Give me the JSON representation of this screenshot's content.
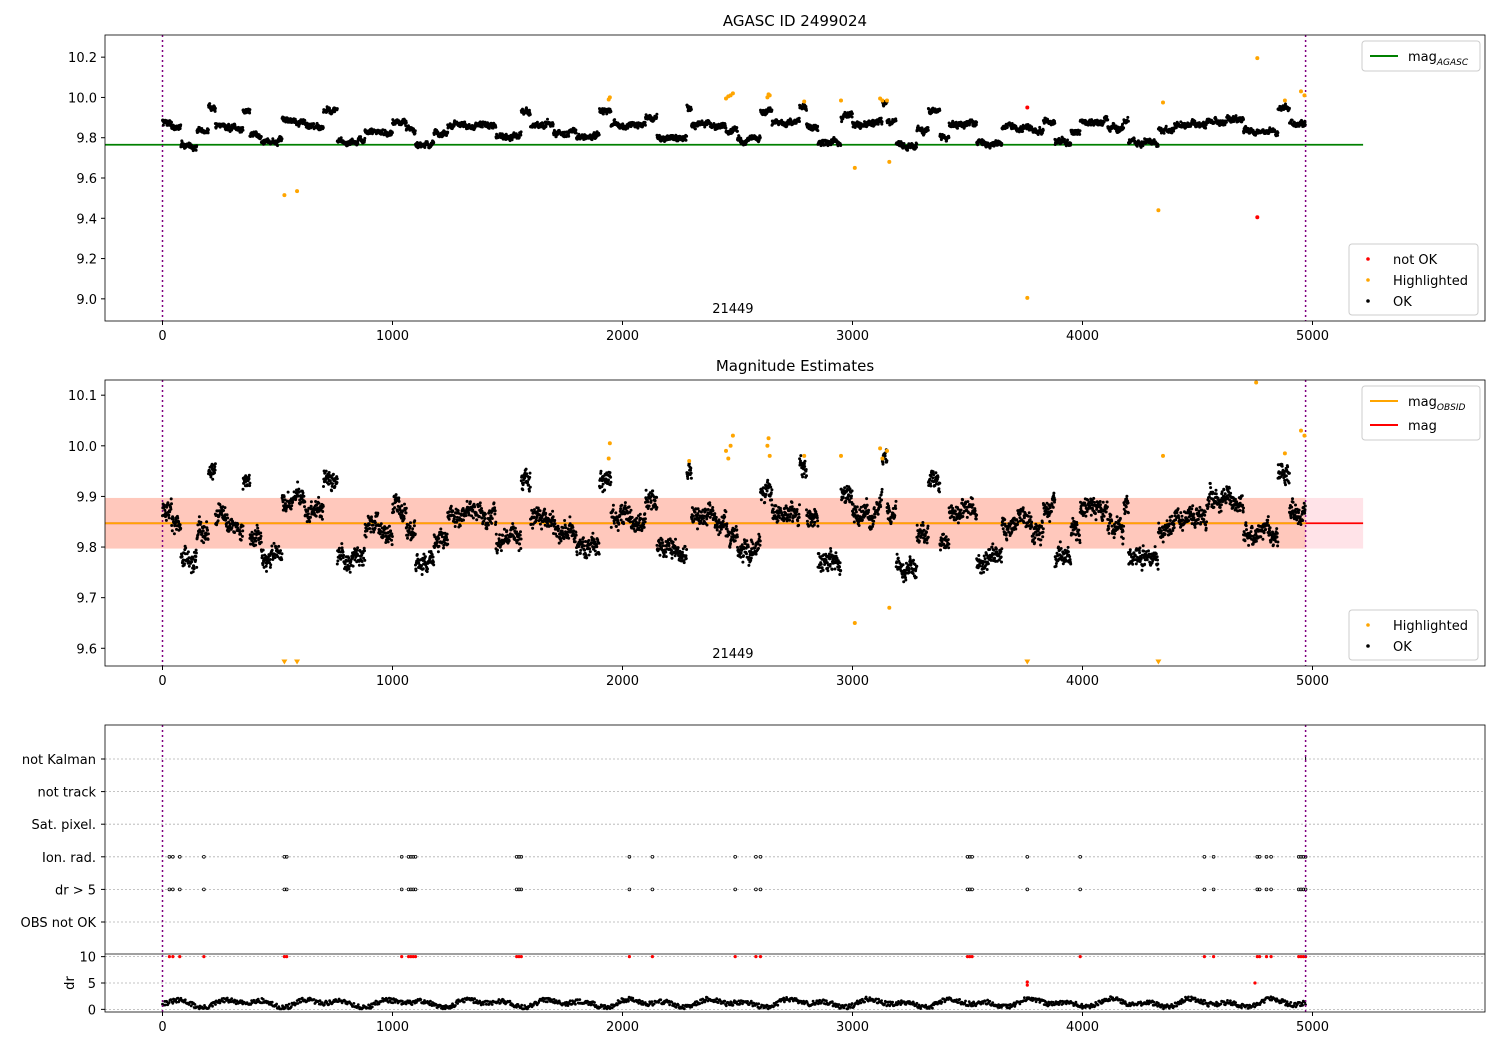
{
  "chart_data": [
    {
      "type": "scatter",
      "title": "AGASC ID 2499024",
      "xlim": [
        -250,
        5750
      ],
      "ylim": [
        8.89,
        10.31
      ],
      "x_ticks": [
        0,
        1000,
        2000,
        3000,
        4000,
        5000
      ],
      "y_ticks": [
        9.0,
        9.2,
        9.4,
        9.6,
        9.8,
        10.0,
        10.2
      ],
      "x_tick_labels": [
        "0",
        "1000",
        "2000",
        "3000",
        "4000",
        "5000"
      ],
      "y_tick_labels": [
        "9.0",
        "9.2",
        "9.4",
        "9.6",
        "9.8",
        "10.0",
        "10.2"
      ],
      "vlines": [
        0,
        4970
      ],
      "obsid_label": "21449",
      "obsid_label_x": 2480,
      "lines": [
        {
          "name": "mag_AGASC",
          "value": 9.765,
          "x_range": [
            -250,
            5220
          ],
          "color": "#008000"
        }
      ],
      "legend_lines": [
        {
          "base": "mag",
          "sub": "AGASC",
          "color": "#008000"
        }
      ],
      "legend_points": [
        {
          "label": "not OK",
          "color": "#ff0000"
        },
        {
          "label": "Highlighted",
          "color": "#ffa500"
        },
        {
          "label": "OK",
          "color": "#000000"
        }
      ],
      "ok_segments": [
        [
          0,
          40,
          9.88
        ],
        [
          40,
          80,
          9.85
        ],
        [
          80,
          150,
          9.76
        ],
        [
          150,
          200,
          9.83
        ],
        [
          200,
          230,
          9.95
        ],
        [
          230,
          290,
          9.86
        ],
        [
          290,
          350,
          9.84
        ],
        [
          350,
          380,
          9.93
        ],
        [
          380,
          430,
          9.82
        ],
        [
          430,
          520,
          9.78
        ],
        [
          520,
          620,
          9.89
        ],
        [
          620,
          700,
          9.86
        ],
        [
          700,
          760,
          9.94
        ],
        [
          760,
          880,
          9.78
        ],
        [
          880,
          1000,
          9.83
        ],
        [
          1000,
          1060,
          9.88
        ],
        [
          1060,
          1100,
          9.84
        ],
        [
          1100,
          1180,
          9.77
        ],
        [
          1180,
          1240,
          9.82
        ],
        [
          1240,
          1450,
          9.86
        ],
        [
          1450,
          1560,
          9.81
        ],
        [
          1560,
          1600,
          9.93
        ],
        [
          1600,
          1700,
          9.86
        ],
        [
          1700,
          1800,
          9.83
        ],
        [
          1800,
          1900,
          9.8
        ],
        [
          1900,
          1950,
          9.93
        ],
        [
          1950,
          2100,
          9.86
        ],
        [
          2100,
          2150,
          9.9
        ],
        [
          2150,
          2280,
          9.8
        ],
        [
          2280,
          2300,
          9.95
        ],
        [
          2300,
          2450,
          9.86
        ],
        [
          2450,
          2500,
          9.83
        ],
        [
          2500,
          2560,
          9.79
        ],
        [
          2560,
          2600,
          9.8
        ],
        [
          2600,
          2650,
          9.93
        ],
        [
          2650,
          2770,
          9.87
        ],
        [
          2770,
          2800,
          9.96
        ],
        [
          2800,
          2850,
          9.86
        ],
        [
          2850,
          2950,
          9.77
        ],
        [
          2950,
          3000,
          9.9
        ],
        [
          3000,
          3130,
          9.87
        ],
        [
          3130,
          3150,
          9.97
        ],
        [
          3150,
          3190,
          9.87
        ],
        [
          3190,
          3280,
          9.76
        ],
        [
          3280,
          3330,
          9.84
        ],
        [
          3330,
          3380,
          9.94
        ],
        [
          3380,
          3420,
          9.81
        ],
        [
          3420,
          3540,
          9.87
        ],
        [
          3540,
          3650,
          9.77
        ],
        [
          3650,
          3780,
          9.85
        ],
        [
          3780,
          3830,
          9.83
        ],
        [
          3830,
          3880,
          9.88
        ],
        [
          3880,
          3950,
          9.78
        ],
        [
          3950,
          3990,
          9.83
        ],
        [
          3990,
          4110,
          9.88
        ],
        [
          4110,
          4180,
          9.84
        ],
        [
          4180,
          4200,
          9.88
        ],
        [
          4200,
          4330,
          9.78
        ],
        [
          4330,
          4400,
          9.84
        ],
        [
          4400,
          4540,
          9.86
        ],
        [
          4540,
          4700,
          9.89
        ],
        [
          4700,
          4850,
          9.83
        ],
        [
          4850,
          4900,
          9.95
        ],
        [
          4900,
          4970,
          9.87
        ]
      ],
      "highlighted": [
        [
          530,
          9.515
        ],
        [
          585,
          9.535
        ],
        [
          1940,
          9.99
        ],
        [
          1945,
          10.0
        ],
        [
          2450,
          9.995
        ],
        [
          2460,
          10.005
        ],
        [
          2470,
          10.01
        ],
        [
          2480,
          10.02
        ],
        [
          2630,
          10.0
        ],
        [
          2635,
          10.015
        ],
        [
          2640,
          10.01
        ],
        [
          2790,
          9.98
        ],
        [
          2950,
          9.985
        ],
        [
          3010,
          9.65
        ],
        [
          3120,
          9.995
        ],
        [
          3130,
          9.985
        ],
        [
          3150,
          9.985
        ],
        [
          3160,
          9.68
        ],
        [
          3760,
          9.005
        ],
        [
          4330,
          9.44
        ],
        [
          4350,
          9.975
        ],
        [
          4760,
          10.195
        ],
        [
          4880,
          9.985
        ],
        [
          4950,
          10.03
        ],
        [
          4965,
          10.01
        ]
      ],
      "not_ok": [
        [
          3760,
          9.95
        ],
        [
          4760,
          9.405
        ]
      ]
    },
    {
      "type": "scatter",
      "title": "Magnitude Estimates",
      "xlim": [
        -250,
        5750
      ],
      "ylim": [
        9.565,
        10.13
      ],
      "x_ticks": [
        0,
        1000,
        2000,
        3000,
        4000,
        5000
      ],
      "y_ticks": [
        9.6,
        9.7,
        9.8,
        9.9,
        10.0,
        10.1
      ],
      "x_tick_labels": [
        "0",
        "1000",
        "2000",
        "3000",
        "4000",
        "5000"
      ],
      "y_tick_labels": [
        "9.6",
        "9.7",
        "9.8",
        "9.9",
        "10.0",
        "10.1"
      ],
      "vlines": [
        0,
        4970
      ],
      "obsid_label": "21449",
      "obsid_label_x": 2480,
      "bands": [
        {
          "y": [
            9.797,
            9.897
          ],
          "x_range": [
            -250,
            5220
          ],
          "color": "#ffc0cb",
          "opacity": 0.45
        },
        {
          "y": [
            9.797,
            9.897
          ],
          "x_range": [
            -250,
            4970
          ],
          "color": "#ffa07a",
          "opacity": 0.4
        }
      ],
      "lines": [
        {
          "name": "mag",
          "value": 9.847,
          "x_range": [
            -250,
            5220
          ],
          "color": "#ff0000"
        },
        {
          "name": "mag_OBSID",
          "value": 9.847,
          "x_range": [
            -250,
            4970
          ],
          "color": "#ffa500"
        }
      ],
      "legend_lines": [
        {
          "base": "mag",
          "sub": "OBSID",
          "color": "#ffa500"
        },
        {
          "base": "mag",
          "sub": "",
          "color": "#ff0000"
        }
      ],
      "legend_points": [
        {
          "label": "Highlighted",
          "color": "#ffa500"
        },
        {
          "label": "OK",
          "color": "#000000"
        }
      ],
      "ok_segments": [
        [
          0,
          40,
          9.88
        ],
        [
          40,
          80,
          9.85
        ],
        [
          80,
          150,
          9.77
        ],
        [
          150,
          200,
          9.83
        ],
        [
          200,
          230,
          9.95
        ],
        [
          230,
          290,
          9.86
        ],
        [
          290,
          350,
          9.84
        ],
        [
          350,
          380,
          9.93
        ],
        [
          380,
          430,
          9.82
        ],
        [
          430,
          520,
          9.78
        ],
        [
          520,
          620,
          9.89
        ],
        [
          620,
          700,
          9.86
        ],
        [
          700,
          760,
          9.93
        ],
        [
          760,
          880,
          9.78
        ],
        [
          880,
          1000,
          9.83
        ],
        [
          1000,
          1060,
          9.88
        ],
        [
          1060,
          1100,
          9.84
        ],
        [
          1100,
          1180,
          9.77
        ],
        [
          1180,
          1240,
          9.82
        ],
        [
          1240,
          1450,
          9.86
        ],
        [
          1450,
          1560,
          9.81
        ],
        [
          1560,
          1600,
          9.93
        ],
        [
          1600,
          1700,
          9.86
        ],
        [
          1700,
          1800,
          9.83
        ],
        [
          1800,
          1900,
          9.8
        ],
        [
          1900,
          1950,
          9.93
        ],
        [
          1950,
          2100,
          9.86
        ],
        [
          2100,
          2150,
          9.9
        ],
        [
          2150,
          2280,
          9.8
        ],
        [
          2280,
          2300,
          9.95
        ],
        [
          2300,
          2450,
          9.86
        ],
        [
          2450,
          2500,
          9.83
        ],
        [
          2500,
          2560,
          9.79
        ],
        [
          2560,
          2600,
          9.8
        ],
        [
          2600,
          2650,
          9.91
        ],
        [
          2650,
          2770,
          9.87
        ],
        [
          2770,
          2800,
          9.96
        ],
        [
          2800,
          2850,
          9.86
        ],
        [
          2850,
          2950,
          9.77
        ],
        [
          2950,
          3000,
          9.9
        ],
        [
          3000,
          3130,
          9.87
        ],
        [
          3130,
          3150,
          9.97
        ],
        [
          3150,
          3190,
          9.87
        ],
        [
          3190,
          3280,
          9.76
        ],
        [
          3280,
          3330,
          9.84
        ],
        [
          3330,
          3380,
          9.94
        ],
        [
          3380,
          3420,
          9.81
        ],
        [
          3420,
          3540,
          9.87
        ],
        [
          3540,
          3650,
          9.77
        ],
        [
          3650,
          3780,
          9.85
        ],
        [
          3780,
          3830,
          9.83
        ],
        [
          3830,
          3880,
          9.88
        ],
        [
          3880,
          3950,
          9.78
        ],
        [
          3950,
          3990,
          9.83
        ],
        [
          3990,
          4110,
          9.88
        ],
        [
          4110,
          4180,
          9.84
        ],
        [
          4180,
          4200,
          9.88
        ],
        [
          4200,
          4330,
          9.78
        ],
        [
          4330,
          4400,
          9.84
        ],
        [
          4400,
          4540,
          9.86
        ],
        [
          4540,
          4700,
          9.89
        ],
        [
          4700,
          4850,
          9.83
        ],
        [
          4850,
          4900,
          9.95
        ],
        [
          4900,
          4970,
          9.87
        ]
      ],
      "highlighted": [
        [
          1940,
          9.975
        ],
        [
          1945,
          10.005
        ],
        [
          2450,
          9.99
        ],
        [
          2460,
          9.975
        ],
        [
          2470,
          10.0
        ],
        [
          2480,
          10.02
        ],
        [
          2630,
          10.0
        ],
        [
          2635,
          10.015
        ],
        [
          2640,
          9.98
        ],
        [
          2790,
          9.98
        ],
        [
          2950,
          9.98
        ],
        [
          3010,
          9.65
        ],
        [
          3120,
          9.995
        ],
        [
          3130,
          9.975
        ],
        [
          3150,
          9.99
        ],
        [
          3160,
          9.68
        ],
        [
          4350,
          9.98
        ],
        [
          4880,
          9.985
        ],
        [
          4950,
          10.03
        ],
        [
          4965,
          10.02
        ],
        [
          2290,
          9.97
        ],
        [
          4755,
          10.125
        ]
      ],
      "highlighted_down": [
        [
          530,
          9.572
        ],
        [
          585,
          9.572
        ],
        [
          3760,
          9.572
        ],
        [
          4330,
          9.572
        ]
      ]
    },
    {
      "type": "scatter",
      "title": "",
      "xlim": [
        -250,
        5750
      ],
      "x_ticks": [
        0,
        1000,
        2000,
        3000,
        4000,
        5000
      ],
      "x_tick_labels": [
        "0",
        "1000",
        "2000",
        "3000",
        "4000",
        "5000"
      ],
      "vlines": [
        0,
        4970
      ],
      "flag_rows": [
        "not Kalman",
        "not track",
        "Sat. pixel.",
        "Ion. rad.",
        "dr > 5",
        "OBS not OK"
      ],
      "flag_times": [
        30,
        45,
        75,
        180,
        530,
        540,
        1040,
        1070,
        1080,
        1090,
        1100,
        1540,
        1550,
        1560,
        2030,
        2130,
        2490,
        2580,
        2600,
        3500,
        3510,
        3520,
        3760,
        3990,
        4530,
        4570,
        4760,
        4770,
        4800,
        4820,
        4940,
        4950,
        4960,
        4970
      ],
      "dr_ylabel": "dr",
      "dr_ylim": [
        -0.5,
        10.5
      ],
      "dr_yticks": [
        0,
        5,
        10
      ],
      "dr_ytick_labels": [
        "0",
        "5",
        "10"
      ],
      "dr_hi": [
        [
          30,
          10
        ],
        [
          45,
          10
        ],
        [
          75,
          10
        ],
        [
          180,
          10
        ],
        [
          530,
          10
        ],
        [
          540,
          10
        ],
        [
          1040,
          10
        ],
        [
          1070,
          10
        ],
        [
          1080,
          10
        ],
        [
          1090,
          10
        ],
        [
          1100,
          10
        ],
        [
          1540,
          10
        ],
        [
          1550,
          10
        ],
        [
          1560,
          10
        ],
        [
          2030,
          10
        ],
        [
          2130,
          10
        ],
        [
          2490,
          10
        ],
        [
          2580,
          10
        ],
        [
          2600,
          10
        ],
        [
          3500,
          10
        ],
        [
          3510,
          10
        ],
        [
          3520,
          10
        ],
        [
          3990,
          10
        ],
        [
          4530,
          10
        ],
        [
          4570,
          10
        ],
        [
          4760,
          10
        ],
        [
          4770,
          10
        ],
        [
          4800,
          10
        ],
        [
          4820,
          10
        ],
        [
          4940,
          10
        ],
        [
          4950,
          10
        ],
        [
          4960,
          10
        ],
        [
          4970,
          10
        ],
        [
          3760,
          5.2
        ],
        [
          3760,
          4.6
        ],
        [
          4750,
          5.0
        ]
      ]
    }
  ]
}
